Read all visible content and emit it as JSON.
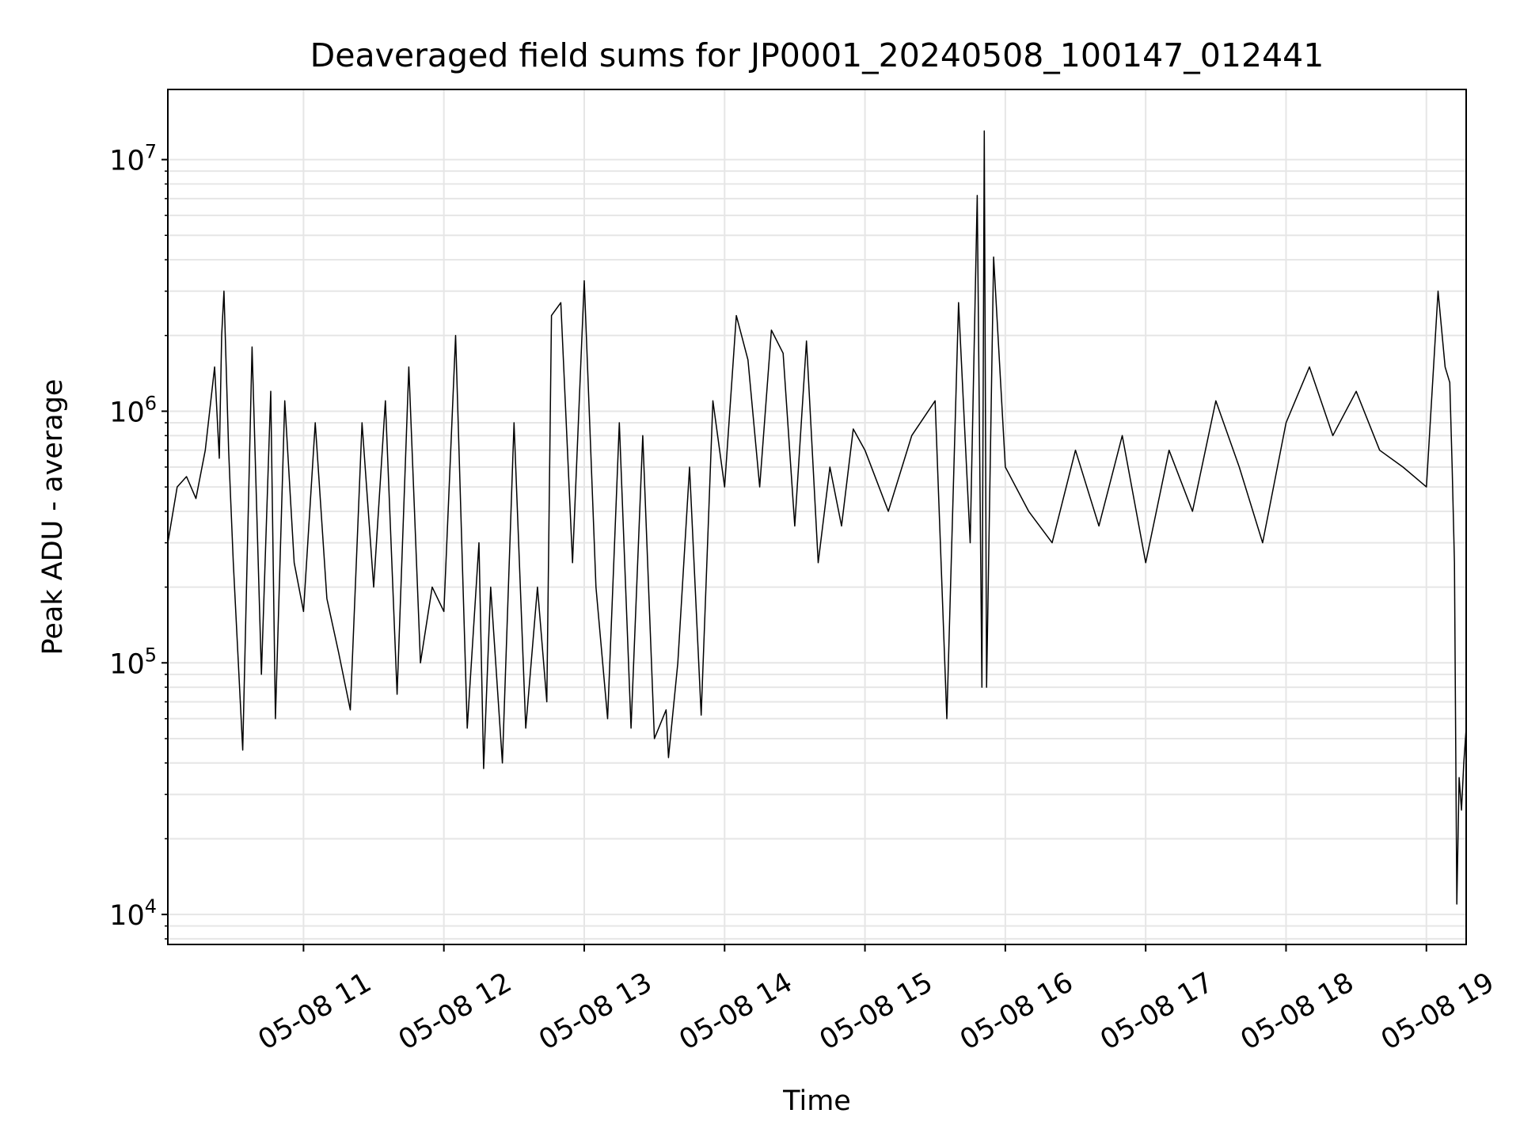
{
  "chart_data": {
    "type": "line",
    "title": "Deaveraged field sums for JP0001_20240508_100147_012441",
    "xlabel": "Time",
    "ylabel": "Peak ADU - average",
    "x_range": [
      "05-08 10:02",
      "05-08 19:17"
    ],
    "x_ticks": [
      "05-08 11",
      "05-08 12",
      "05-08 13",
      "05-08 14",
      "05-08 15",
      "05-08 16",
      "05-08 17",
      "05-08 18",
      "05-08 19"
    ],
    "y_scale": "log",
    "y_range": [
      7600,
      19000000
    ],
    "y_ticks": [
      {
        "base": "10",
        "exp": "4",
        "value": 10000
      },
      {
        "base": "10",
        "exp": "5",
        "value": 100000
      },
      {
        "base": "10",
        "exp": "6",
        "value": 1000000
      },
      {
        "base": "10",
        "exp": "7",
        "value": 10000000
      }
    ],
    "grid": true,
    "legend": "none",
    "colors": {
      "line": "#000000",
      "grid": "#e6e6e6",
      "axes": "#000000"
    },
    "series": [
      {
        "x": [
          "05-08 10:02",
          "05-08 10:06",
          "05-08 10:10",
          "05-08 10:14",
          "05-08 10:18",
          "05-08 10:22",
          "05-08 10:24",
          "05-08 10:25",
          "05-08 10:26",
          "05-08 10:28",
          "05-08 10:30",
          "05-08 10:34",
          "05-08 10:38",
          "05-08 10:42",
          "05-08 10:46",
          "05-08 10:48",
          "05-08 10:52",
          "05-08 10:56",
          "05-08 11:00",
          "05-08 11:05",
          "05-08 11:10",
          "05-08 11:15",
          "05-08 11:20",
          "05-08 11:25",
          "05-08 11:30",
          "05-08 11:35",
          "05-08 11:40",
          "05-08 11:45",
          "05-08 11:50",
          "05-08 11:55",
          "05-08 12:00",
          "05-08 12:05",
          "05-08 12:10",
          "05-08 12:15",
          "05-08 12:17",
          "05-08 12:20",
          "05-08 12:25",
          "05-08 12:30",
          "05-08 12:35",
          "05-08 12:40",
          "05-08 12:44",
          "05-08 12:46",
          "05-08 12:50",
          "05-08 12:55",
          "05-08 13:00",
          "05-08 13:05",
          "05-08 13:10",
          "05-08 13:15",
          "05-08 13:20",
          "05-08 13:25",
          "05-08 13:30",
          "05-08 13:35",
          "05-08 13:36",
          "05-08 13:40",
          "05-08 13:45",
          "05-08 13:50",
          "05-08 13:55",
          "05-08 14:00",
          "05-08 14:05",
          "05-08 14:10",
          "05-08 14:15",
          "05-08 14:20",
          "05-08 14:25",
          "05-08 14:30",
          "05-08 14:35",
          "05-08 14:40",
          "05-08 14:45",
          "05-08 14:50",
          "05-08 14:55",
          "05-08 15:00",
          "05-08 15:10",
          "05-08 15:20",
          "05-08 15:30",
          "05-08 15:35",
          "05-08 15:40",
          "05-08 15:45",
          "05-08 15:48",
          "05-08 15:50",
          "05-08 15:51",
          "05-08 15:52",
          "05-08 15:55",
          "05-08 16:00",
          "05-08 16:10",
          "05-08 16:20",
          "05-08 16:30",
          "05-08 16:40",
          "05-08 16:50",
          "05-08 17:00",
          "05-08 17:10",
          "05-08 17:20",
          "05-08 17:30",
          "05-08 17:40",
          "05-08 17:50",
          "05-08 18:00",
          "05-08 18:10",
          "05-08 18:20",
          "05-08 18:30",
          "05-08 18:40",
          "05-08 18:50",
          "05-08 19:00",
          "05-08 19:05",
          "05-08 19:08",
          "05-08 19:10",
          "05-08 19:11",
          "05-08 19:12",
          "05-08 19:13",
          "05-08 19:14",
          "05-08 19:15",
          "05-08 19:16",
          "05-08 19:17"
        ],
        "y": [
          300000,
          500000,
          550000,
          450000,
          700000,
          1500000,
          650000,
          2000000,
          3000000,
          700000,
          250000,
          45000,
          1800000,
          90000,
          1200000,
          60000,
          1100000,
          250000,
          160000,
          900000,
          180000,
          110000,
          65000,
          900000,
          200000,
          1100000,
          75000,
          1500000,
          100000,
          200000,
          160000,
          2000000,
          55000,
          300000,
          38000,
          200000,
          40000,
          900000,
          55000,
          200000,
          70000,
          2400000,
          2700000,
          250000,
          3300000,
          200000,
          60000,
          900000,
          55000,
          800000,
          50000,
          65000,
          42000,
          100000,
          600000,
          62000,
          1100000,
          500000,
          2400000,
          1600000,
          500000,
          2100000,
          1700000,
          350000,
          1900000,
          250000,
          600000,
          350000,
          850000,
          700000,
          400000,
          800000,
          1100000,
          60000,
          2700000,
          300000,
          7200000,
          80000,
          13000000,
          80000,
          4100000,
          600000,
          400000,
          300000,
          700000,
          350000,
          800000,
          250000,
          700000,
          400000,
          1100000,
          600000,
          300000,
          900000,
          1500000,
          800000,
          1200000,
          700000,
          600000,
          500000,
          3000000,
          1500000,
          1300000,
          600000,
          250000,
          11000,
          35000,
          26000,
          40000,
          55000
        ]
      }
    ]
  }
}
